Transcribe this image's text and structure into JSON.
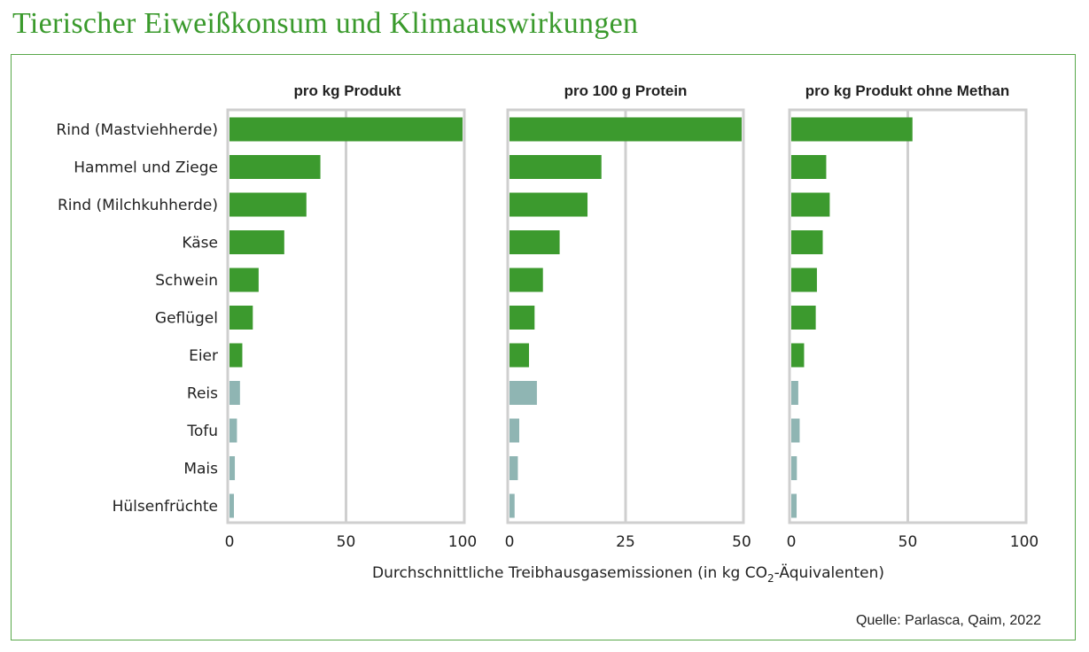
{
  "title": "Tierischer Eiweißkonsum und Klimaauswirkungen",
  "source": "Quelle: Parlasca, Qaim, 2022",
  "colors": {
    "title": "#3a9a2c",
    "animal": "#3c9a2e",
    "plant": "#8fb5b3",
    "grid": "#cfcfcf",
    "frame": "#58a84a"
  },
  "chart_data": {
    "type": "bar",
    "orientation": "horizontal",
    "xlabel": {
      "before": "Durchschnittliche Treibhausgasemissionen (in kg CO",
      "sub": "2",
      "after": "-Äquivalenten)"
    },
    "categories": [
      "Rind (Mastviehherde)",
      "Hammel und Ziege",
      "Rind (Milchkuhherde)",
      "Käse",
      "Schwein",
      "Geflügel",
      "Eier",
      "Reis",
      "Tofu",
      "Mais",
      "Hülsenfrüchte"
    ],
    "category_group": [
      "animal",
      "animal",
      "animal",
      "animal",
      "animal",
      "animal",
      "animal",
      "plant",
      "plant",
      "plant",
      "plant"
    ],
    "panels": [
      {
        "title": "pro kg Produkt",
        "xlim": [
          0,
          100
        ],
        "ticks": [
          0,
          50,
          100
        ],
        "values": [
          100,
          39,
          33,
          23.5,
          12.5,
          10,
          5.5,
          4.5,
          3.2,
          2.3,
          1.9
        ]
      },
      {
        "title": "pro 100 g Protein",
        "xlim": [
          0,
          50
        ],
        "ticks": [
          0,
          25,
          50
        ],
        "values": [
          50,
          19.8,
          16.8,
          10.8,
          7.2,
          5.4,
          4.2,
          5.9,
          2.1,
          1.8,
          1.1
        ]
      },
      {
        "title": "pro kg Produkt ohne Methan",
        "xlim": [
          0,
          100
        ],
        "ticks": [
          0,
          50,
          100
        ],
        "values": [
          52,
          15,
          16.5,
          13.5,
          11,
          10.5,
          5.5,
          3,
          3.6,
          2.4,
          2.3
        ]
      }
    ]
  }
}
